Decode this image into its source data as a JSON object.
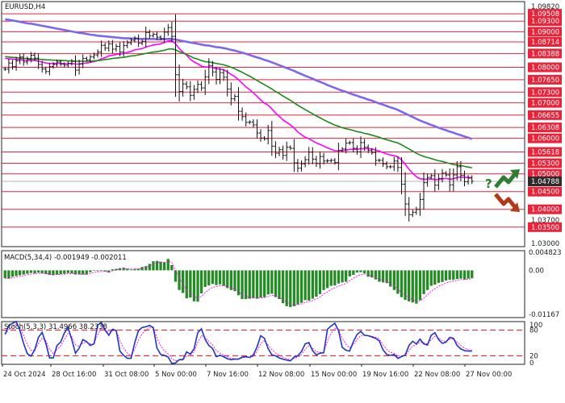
{
  "chart_data": [
    {
      "panel": "main",
      "type": "candlestick",
      "title": "EURUSD,H4",
      "ylim": [
        1.0295,
        1.0985
      ],
      "y_ticks": [
        "1.09820",
        "1.09508",
        "1.09300",
        "1.09000",
        "1.08714",
        "1.08388",
        "1.08000",
        "1.07650",
        "1.07300",
        "1.07000",
        "1.06655",
        "1.06308",
        "1.06000",
        "1.05618",
        "1.05300",
        "1.05000",
        "1.04788",
        "1.04500",
        "1.04000",
        "1.03700",
        "1.03500",
        "1.03000"
      ],
      "resistance_levels": [
        1.09508,
        1.093,
        1.09,
        1.08714,
        1.08388,
        1.08,
        1.0765,
        1.073,
        1.07,
        1.06655,
        1.06308,
        1.06,
        1.05618,
        1.053,
        1.05
      ],
      "support_levels": [
        1.045,
        1.04,
        1.035
      ],
      "current_price": "1.04788",
      "x_tick_labels": [
        "24 Oct 2024",
        "28 Oct 16:00",
        "31 Oct 08:00",
        "5 Nov 00:00",
        "7 Nov 16:00",
        "12 Nov 08:00",
        "15 Nov 00:00",
        "19 Nov 16:00",
        "22 Nov 08:00",
        "27 Nov 00:00"
      ],
      "close": [
        1.0795,
        1.0812,
        1.0802,
        1.0818,
        1.0829,
        1.0815,
        1.0823,
        1.0834,
        1.0826,
        1.0808,
        1.0795,
        1.0788,
        1.0802,
        1.0808,
        1.0815,
        1.0809,
        1.0806,
        1.0811,
        1.0817,
        1.0792,
        1.0809,
        1.0825,
        1.0821,
        1.0829,
        1.0835,
        1.0843,
        1.0862,
        1.0854,
        1.0866,
        1.0851,
        1.0859,
        1.0843,
        1.0861,
        1.0869,
        1.0876,
        1.0882,
        1.0868,
        1.0873,
        1.0898,
        1.0889,
        1.0893,
        1.0885,
        1.0881,
        1.0899,
        1.0912,
        1.0887,
        1.0779,
        1.0732,
        1.0753,
        1.0745,
        1.0721,
        1.0738,
        1.0752,
        1.0742,
        1.0773,
        1.0805,
        1.0787,
        1.0766,
        1.0785,
        1.0772,
        1.0739,
        1.0711,
        1.0718,
        1.0676,
        1.0661,
        1.0645,
        1.0646,
        1.0638,
        1.0615,
        1.0601,
        1.0599,
        1.0622,
        1.0578,
        1.0558,
        1.0568,
        1.0552,
        1.0575,
        1.0572,
        1.0531,
        1.0516,
        1.0528,
        1.054,
        1.0561,
        1.0541,
        1.0529,
        1.0549,
        1.0536,
        1.0537,
        1.0538,
        1.0532,
        1.0566,
        1.057,
        1.0587,
        1.0588,
        1.0572,
        1.0562,
        1.0588,
        1.0575,
        1.0566,
        1.056,
        1.0538,
        1.0538,
        1.0528,
        1.052,
        1.052,
        1.0536,
        1.0518,
        1.0471,
        1.0415,
        1.0385,
        1.0392,
        1.04,
        1.0428,
        1.0475,
        1.049,
        1.0495,
        1.0468,
        1.0487,
        1.0502,
        1.0497,
        1.0469,
        1.0497,
        1.052,
        1.0496,
        1.0478,
        1.0488,
        1.0479
      ],
      "series": [
        {
          "name": "",
          "color": "#ff00ff",
          "values": [
            1.0825,
            1.0824,
            1.0823,
            1.0822,
            1.0822,
            1.082,
            1.0819,
            1.0819,
            1.0819,
            1.0817,
            1.0815,
            1.0812,
            1.0811,
            1.0811,
            1.0811,
            1.0811,
            1.081,
            1.081,
            1.0811,
            1.0809,
            1.0809,
            1.0811,
            1.0812,
            1.0814,
            1.0816,
            1.0819,
            1.0824,
            1.0827,
            1.0832,
            1.0834,
            1.0836,
            1.0837,
            1.0839,
            1.0842,
            1.0845,
            1.0849,
            1.0851,
            1.0853,
            1.0857,
            1.086,
            1.0863,
            1.0864,
            1.0866,
            1.087,
            1.0874,
            1.0875,
            1.0866,
            1.0853,
            1.0843,
            1.0834,
            1.0823,
            1.0815,
            1.081,
            1.0803,
            1.0801,
            1.0801,
            1.08,
            1.0796,
            1.0795,
            1.0793,
            1.0787,
            1.078,
            1.0774,
            1.0765,
            1.0755,
            1.0745,
            1.0737,
            1.0728,
            1.0718,
            1.0708,
            1.0699,
            1.0693,
            1.0683,
            1.0671,
            1.0662,
            1.0652,
            1.0645,
            1.0638,
            1.0629,
            1.0618,
            1.061,
            1.0603,
            1.0599,
            1.0593,
            1.0587,
            1.0583,
            1.0578,
            1.0573,
            1.0569,
            1.0565,
            1.0565,
            1.0565,
            1.0567,
            1.0569,
            1.0569,
            1.0569,
            1.0571,
            1.0571,
            1.0571,
            1.057,
            1.0567,
            1.0564,
            1.056,
            1.0556,
            1.0553,
            1.0551,
            1.0548,
            1.0539,
            1.0527,
            1.0513,
            1.0502,
            1.0492,
            1.0486,
            1.0485,
            1.0485,
            1.0486,
            1.0484,
            1.0484,
            1.0486,
            1.0487,
            1.0485,
            1.0486,
            1.049,
            1.0491,
            1.049,
            1.049,
            1.0489
          ]
        },
        {
          "name": "",
          "color": "#1a8a1a",
          "values": [
            1.083,
            1.0829,
            1.0828,
            1.0827,
            1.0826,
            1.0825,
            1.0825,
            1.0824,
            1.0823,
            1.0823,
            1.0822,
            1.0821,
            1.0821,
            1.082,
            1.082,
            1.0819,
            1.0819,
            1.0818,
            1.0818,
            1.0817,
            1.0817,
            1.0817,
            1.0817,
            1.0817,
            1.0818,
            1.0819,
            1.082,
            1.0822,
            1.0823,
            1.0825,
            1.0826,
            1.0827,
            1.0828,
            1.083,
            1.0832,
            1.0833,
            1.0835,
            1.0837,
            1.0839,
            1.0841,
            1.0843,
            1.0844,
            1.0846,
            1.0848,
            1.0851,
            1.0852,
            1.0849,
            1.0844,
            1.084,
            1.0836,
            1.0831,
            1.0826,
            1.0823,
            1.0819,
            1.0816,
            1.0815,
            1.0813,
            1.0811,
            1.0809,
            1.0807,
            1.0804,
            1.08,
            1.0796,
            1.0791,
            1.0786,
            1.078,
            1.0775,
            1.0769,
            1.0763,
            1.0757,
            1.0751,
            1.0745,
            1.0739,
            1.0732,
            1.0726,
            1.0719,
            1.0713,
            1.0707,
            1.07,
            1.0693,
            1.0687,
            1.0681,
            1.0675,
            1.0669,
            1.0663,
            1.0658,
            1.0652,
            1.0647,
            1.0642,
            1.0637,
            1.0634,
            1.063,
            1.0627,
            1.0625,
            1.0622,
            1.0619,
            1.0617,
            1.0614,
            1.0612,
            1.0609,
            1.0606,
            1.0603,
            1.0599,
            1.0596,
            1.0593,
            1.059,
            1.0587,
            1.0582,
            1.0576,
            1.057,
            1.0564,
            1.0558,
            1.0553,
            1.0549,
            1.0546,
            1.0543,
            1.054,
            1.0537,
            1.0535,
            1.0532,
            1.0529,
            1.0526,
            1.0525,
            1.0523,
            1.0521,
            1.0519,
            1.0517
          ]
        },
        {
          "name": "",
          "color": "#7b68ee",
          "values": [
            1.0935,
            1.0934,
            1.0932,
            1.093,
            1.0928,
            1.0926,
            1.0924,
            1.0923,
            1.0921,
            1.0919,
            1.0917,
            1.0915,
            1.0913,
            1.0911,
            1.0909,
            1.0907,
            1.0905,
            1.0903,
            1.0901,
            1.0899,
            1.0897,
            1.0896,
            1.0894,
            1.0892,
            1.0891,
            1.0889,
            1.0888,
            1.0887,
            1.0886,
            1.0885,
            1.0884,
            1.0883,
            1.0882,
            1.0882,
            1.0881,
            1.0881,
            1.088,
            1.088,
            1.088,
            1.088,
            1.088,
            1.0879,
            1.0879,
            1.0879,
            1.088,
            1.088,
            1.0878,
            1.0876,
            1.0874,
            1.0872,
            1.087,
            1.0868,
            1.0866,
            1.0864,
            1.0862,
            1.0861,
            1.0859,
            1.0857,
            1.0856,
            1.0854,
            1.0852,
            1.0849,
            1.0847,
            1.0844,
            1.0841,
            1.0838,
            1.0835,
            1.0831,
            1.0828,
            1.0825,
            1.0821,
            1.0818,
            1.0814,
            1.081,
            1.0806,
            1.0802,
            1.0798,
            1.0794,
            1.079,
            1.0785,
            1.0781,
            1.0776,
            1.0772,
            1.0768,
            1.0763,
            1.0759,
            1.0755,
            1.075,
            1.0746,
            1.0742,
            1.0738,
            1.0734,
            1.0731,
            1.0727,
            1.0723,
            1.072,
            1.0716,
            1.0713,
            1.0709,
            1.0706,
            1.0702,
            1.0698,
            1.0695,
            1.0691,
            1.0687,
            1.0684,
            1.068,
            1.0675,
            1.067,
            1.0665,
            1.066,
            1.0655,
            1.065,
            1.0646,
            1.0642,
            1.0638,
            1.0634,
            1.063,
            1.0626,
            1.0623,
            1.0619,
            1.0616,
            1.0612,
            1.0609,
            1.0605,
            1.0602,
            1.0598
          ]
        }
      ],
      "annotations": {
        "question_mark": "?",
        "arrow_up_color": "#2e7d32",
        "arrow_down_color": "#b03a1a"
      }
    },
    {
      "panel": "macd",
      "type": "bar",
      "title": "MACD(5,34,4) -0.001949 -0.002011",
      "ylim": [
        -0.0125,
        0.0052
      ],
      "y_ticks": [
        "0.004823",
        "0.00",
        "-0.01167"
      ],
      "bar_color": "#228b22",
      "values": [
        -0.0021,
        -0.0022,
        -0.0017,
        -0.0015,
        -0.0013,
        -0.0011,
        -0.0009,
        -0.0007,
        -0.0008,
        -0.0006,
        -0.0008,
        -0.001,
        -0.0012,
        -0.0013,
        -0.0011,
        -0.001,
        -0.0009,
        -0.0007,
        -0.0008,
        -0.0011,
        -0.0011,
        -0.0011,
        -0.0011,
        -0.0005,
        -0.0001,
        -0.0002,
        -0.0001,
        -0.0003,
        -0.0006,
        0.0003,
        0.0004,
        0.0006,
        0.0007,
        0.0004,
        0.0002,
        0.0004,
        0.0004,
        0.0009,
        0.0011,
        0.0017,
        0.0024,
        0.0025,
        0.0023,
        0.0021,
        0.003,
        0.0014,
        -0.003,
        -0.0052,
        -0.006,
        -0.0074,
        -0.0072,
        -0.0082,
        -0.0083,
        -0.0061,
        -0.0044,
        -0.004,
        -0.0036,
        -0.0039,
        -0.0037,
        -0.0041,
        -0.0047,
        -0.0052,
        -0.0055,
        -0.0066,
        -0.0076,
        -0.0076,
        -0.0075,
        -0.0074,
        -0.0075,
        -0.0072,
        -0.0071,
        -0.0064,
        -0.0062,
        -0.0071,
        -0.0076,
        -0.0087,
        -0.0095,
        -0.0097,
        -0.0095,
        -0.009,
        -0.0086,
        -0.0079,
        -0.008,
        -0.0075,
        -0.007,
        -0.0063,
        -0.0052,
        -0.0047,
        -0.0041,
        -0.004,
        -0.0035,
        -0.0032,
        -0.003,
        -0.0016,
        -0.0012,
        -0.0006,
        -0.0005,
        -0.0008,
        -0.0017,
        -0.0019,
        -0.0024,
        -0.003,
        -0.0032,
        -0.0034,
        -0.0043,
        -0.0052,
        -0.0062,
        -0.0071,
        -0.0078,
        -0.0082,
        -0.0085,
        -0.0088,
        -0.0079,
        -0.0063,
        -0.0052,
        -0.0041,
        -0.0038,
        -0.0033,
        -0.0031,
        -0.0027,
        -0.0025,
        -0.0025,
        -0.0023,
        -0.0022,
        -0.0024,
        -0.0022,
        -0.0021
      ],
      "signal_color": "#ff00ff"
    },
    {
      "panel": "stoch",
      "type": "line",
      "title": "Stoch(5,3,3) 31.4966 38.2338",
      "ylim": [
        0,
        100
      ],
      "y_ticks": [
        "100",
        "80",
        "20",
        "0"
      ],
      "levels": [
        80,
        20
      ],
      "main_color": "#1f35c9",
      "signal_color": "#ff00ff",
      "values": [
        70,
        91,
        96,
        100,
        79,
        49,
        25,
        19,
        34,
        63,
        75,
        49,
        15,
        15,
        44,
        52,
        73,
        86,
        58,
        26,
        38,
        58,
        53,
        44,
        48,
        92,
        98,
        80,
        68,
        82,
        79,
        31,
        21,
        14,
        14,
        51,
        79,
        86,
        88,
        91,
        86,
        38,
        23,
        21,
        17,
        2,
        3,
        11,
        11,
        29,
        24,
        36,
        74,
        83,
        58,
        44,
        37,
        18,
        21,
        18,
        13,
        11,
        12,
        12,
        17,
        18,
        16,
        22,
        41,
        67,
        61,
        37,
        22,
        20,
        15,
        12,
        10,
        8,
        17,
        20,
        30,
        48,
        51,
        32,
        22,
        26,
        27,
        82,
        90,
        96,
        79,
        40,
        33,
        31,
        53,
        70,
        77,
        68,
        67,
        64,
        61,
        55,
        34,
        23,
        21,
        23,
        14,
        18,
        22,
        44,
        54,
        48,
        59,
        48,
        45,
        68,
        74,
        58,
        49,
        52,
        63,
        61,
        44,
        36,
        32,
        31,
        31
      ]
    }
  ],
  "legend_marker": "?"
}
